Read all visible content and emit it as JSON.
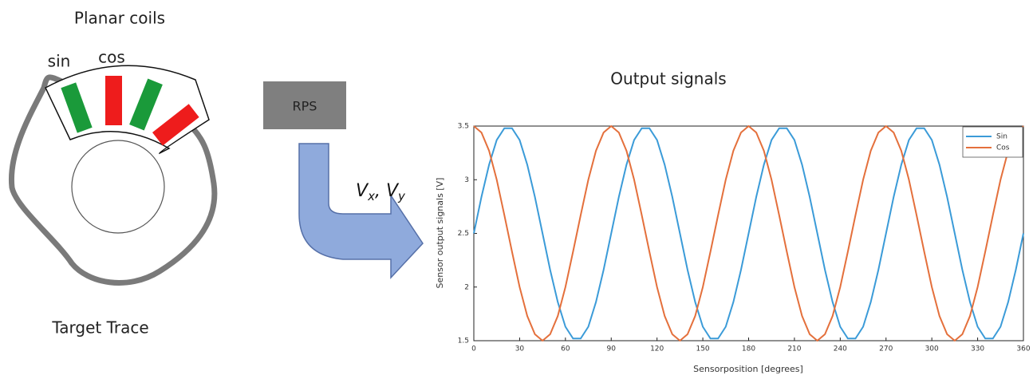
{
  "diagram": {
    "coils_label": "Planar coils",
    "sin_label": "sin",
    "cos_label": "cos",
    "target_label": "Target Trace",
    "block_label": "RPS",
    "arrow_label": [
      "V",
      "x",
      ", V",
      "y"
    ]
  },
  "chart_data": {
    "type": "line",
    "title": "Output signals",
    "xlabel": "Sensorposition [degrees]",
    "ylabel": "Sensor output signals [V]",
    "x": [
      0,
      5,
      10,
      15,
      20,
      25,
      30,
      35,
      40,
      45,
      50,
      55,
      60,
      65,
      70,
      75,
      80,
      85,
      90,
      95,
      100,
      105,
      110,
      115,
      120,
      125,
      130,
      135,
      140,
      145,
      150,
      155,
      160,
      165,
      170,
      175,
      180,
      185,
      190,
      195,
      200,
      205,
      210,
      215,
      220,
      225,
      230,
      235,
      240,
      245,
      250,
      255,
      260,
      265,
      270,
      275,
      280,
      285,
      290,
      295,
      300,
      305,
      310,
      315,
      320,
      325,
      330,
      335,
      340,
      345,
      350,
      355,
      360
    ],
    "series": [
      {
        "name": "Sin",
        "color": "#3b9bd8",
        "values": [
          2.5,
          2.84,
          3.14,
          3.37,
          3.48,
          3.48,
          3.37,
          3.14,
          2.84,
          2.5,
          2.16,
          1.86,
          1.63,
          1.52,
          1.52,
          1.63,
          1.86,
          2.16,
          2.5,
          2.84,
          3.14,
          3.37,
          3.48,
          3.48,
          3.37,
          3.14,
          2.84,
          2.5,
          2.16,
          1.86,
          1.63,
          1.52,
          1.52,
          1.63,
          1.86,
          2.16,
          2.5,
          2.84,
          3.14,
          3.37,
          3.48,
          3.48,
          3.37,
          3.14,
          2.84,
          2.5,
          2.16,
          1.86,
          1.63,
          1.52,
          1.52,
          1.63,
          1.86,
          2.16,
          2.5,
          2.84,
          3.14,
          3.37,
          3.48,
          3.48,
          3.37,
          3.14,
          2.84,
          2.5,
          2.16,
          1.86,
          1.63,
          1.52,
          1.52,
          1.63,
          1.86,
          2.16,
          2.5
        ]
      },
      {
        "name": "Cos",
        "color": "#e4703c",
        "values": [
          3.5,
          3.44,
          3.27,
          3,
          2.67,
          2.33,
          2,
          1.73,
          1.56,
          1.5,
          1.56,
          1.73,
          2,
          2.33,
          2.67,
          3,
          3.27,
          3.44,
          3.5,
          3.44,
          3.27,
          3,
          2.67,
          2.33,
          2,
          1.73,
          1.56,
          1.5,
          1.56,
          1.73,
          2,
          2.33,
          2.67,
          3,
          3.27,
          3.44,
          3.5,
          3.44,
          3.27,
          3,
          2.67,
          2.33,
          2,
          1.73,
          1.56,
          1.5,
          1.56,
          1.73,
          2,
          2.33,
          2.67,
          3,
          3.27,
          3.44,
          3.5,
          3.44,
          3.27,
          3,
          2.67,
          2.33,
          2,
          1.73,
          1.56,
          1.5,
          1.56,
          1.73,
          2,
          2.33,
          2.67,
          3,
          3.27,
          3.44,
          3.5
        ]
      }
    ],
    "xlim": [
      0,
      360
    ],
    "xticks": [
      0,
      30,
      60,
      90,
      120,
      150,
      180,
      210,
      240,
      270,
      300,
      330,
      360
    ],
    "ylim": [
      1.5,
      3.5
    ],
    "yticks": [
      1.5,
      2,
      2.5,
      3,
      3.5
    ],
    "grid": false,
    "legend": "top-right"
  }
}
